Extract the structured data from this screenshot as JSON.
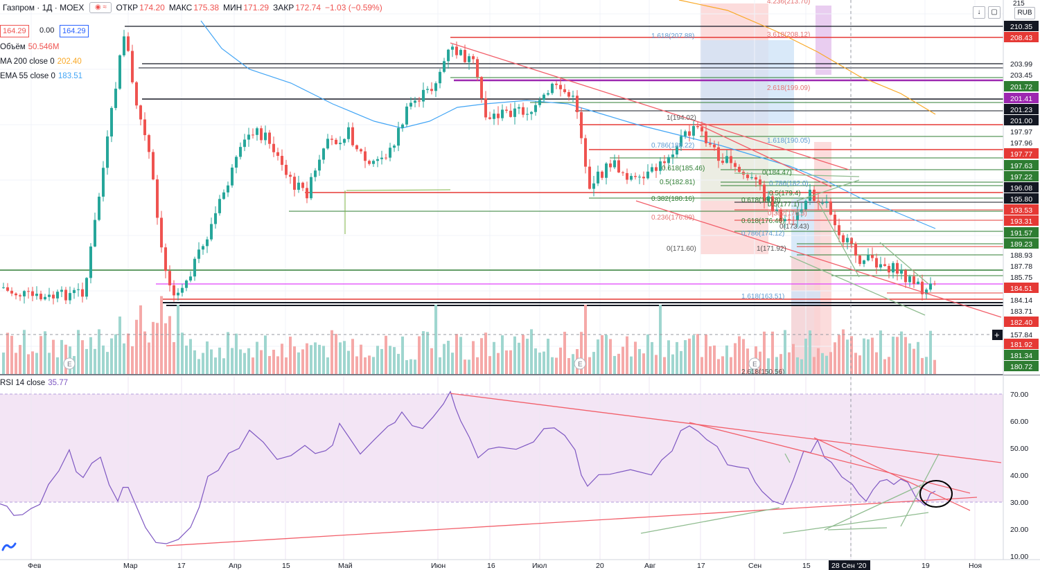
{
  "header": {
    "symbol": "Газпром · 1Д · MOEX",
    "open_label": "ОТКР",
    "open": "174.20",
    "high_label": "МАКС",
    "high": "175.38",
    "low_label": "МИН",
    "low": "171.29",
    "close_label": "ЗАКР",
    "close": "172.74",
    "change": "−1.03 (−0.59%)"
  },
  "quote": {
    "bid": "164.29",
    "spread": "0.00",
    "ask": "164.29"
  },
  "indicators": {
    "volume_label": "Объём",
    "volume_value": "50.546M",
    "ma_label": "MA 200 close 0",
    "ma_value": "202.40",
    "ema_label": "EMA 55 close 0",
    "ema_value": "183.51"
  },
  "toolbar": {
    "currency": "RUB",
    "down_icon": "↓",
    "restore_icon": "▢"
  },
  "rsi": {
    "label": "RSI 14 close",
    "value": "35.77"
  },
  "colors": {
    "up": "#26a69a",
    "down": "#ef5350",
    "ma200": "#f9a825",
    "ema55": "#42a5f5",
    "rsi_line": "#7e57c2",
    "rsi_band": "#f3e5f5",
    "trend": "#f25f6a",
    "green_level": "#388e3c",
    "fib_blue": "#5e9cd3",
    "vol_up": "#9fd6cf",
    "vol_down": "#f5a9a8"
  },
  "price_axis": {
    "labels": [
      {
        "t": "210.35",
        "bg": "#131722",
        "fg": "#ffffff"
      },
      {
        "t": "208.43",
        "bg": "#e53935",
        "fg": "#ffffff"
      },
      {
        "t": "203.99",
        "bg": "#ffffff",
        "fg": "#131722"
      },
      {
        "t": "203.45",
        "bg": "#ffffff",
        "fg": "#131722"
      },
      {
        "t": "201.72",
        "bg": "#2e7d32",
        "fg": "#ffffff"
      },
      {
        "t": "201.41",
        "bg": "#9c27b0",
        "fg": "#ffffff"
      },
      {
        "t": "201.23",
        "bg": "#131722",
        "fg": "#ffffff"
      },
      {
        "t": "201.00",
        "bg": "#131722",
        "fg": "#ffffff"
      },
      {
        "t": "197.97",
        "bg": "#ffffff",
        "fg": "#131722"
      },
      {
        "t": "197.96",
        "bg": "#ffffff",
        "fg": "#131722"
      },
      {
        "t": "197.77",
        "bg": "#e53935",
        "fg": "#ffffff"
      },
      {
        "t": "197.63",
        "bg": "#2e7d32",
        "fg": "#ffffff"
      },
      {
        "t": "197.22",
        "bg": "#2e7d32",
        "fg": "#ffffff"
      },
      {
        "t": "196.08",
        "bg": "#131722",
        "fg": "#ffffff"
      },
      {
        "t": "195.80",
        "bg": "#131722",
        "fg": "#ffffff"
      },
      {
        "t": "193.53",
        "bg": "#e53935",
        "fg": "#ffffff"
      },
      {
        "t": "193.31",
        "bg": "#e53935",
        "fg": "#ffffff"
      },
      {
        "t": "191.57",
        "bg": "#2e7d32",
        "fg": "#ffffff"
      },
      {
        "t": "189.23",
        "bg": "#2e7d32",
        "fg": "#ffffff"
      },
      {
        "t": "188.93",
        "bg": "#ffffff",
        "fg": "#131722"
      },
      {
        "t": "187.78",
        "bg": "#ffffff",
        "fg": "#131722"
      },
      {
        "t": "185.75",
        "bg": "#ffffff",
        "fg": "#131722"
      },
      {
        "t": "184.51",
        "bg": "#e53935",
        "fg": "#ffffff"
      },
      {
        "t": "184.14",
        "bg": "#ffffff",
        "fg": "#131722"
      },
      {
        "t": "183.71",
        "bg": "#ffffff",
        "fg": "#131722"
      },
      {
        "t": "182.40",
        "bg": "#e53935",
        "fg": "#ffffff"
      },
      {
        "t": "157.84",
        "bg": "#ffffff",
        "fg": "#131722"
      },
      {
        "t": "181.92",
        "bg": "#e53935",
        "fg": "#ffffff"
      },
      {
        "t": "181.34",
        "bg": "#2e7d32",
        "fg": "#ffffff"
      },
      {
        "t": "180.72",
        "bg": "#2e7d32",
        "fg": "#ffffff"
      }
    ],
    "top_partial": "215"
  },
  "rsi_axis": [
    "70.00",
    "60.00",
    "50.00",
    "40.00",
    "30.00",
    "20.00",
    "10.00"
  ],
  "time_axis": [
    {
      "t": "Фев"
    },
    {
      "t": "Мар"
    },
    {
      "t": "17"
    },
    {
      "t": "Апр"
    },
    {
      "t": "15"
    },
    {
      "t": "Май"
    },
    {
      "t": "Июн"
    },
    {
      "t": "16"
    },
    {
      "t": "Июл"
    },
    {
      "t": "20"
    },
    {
      "t": "Авг"
    },
    {
      "t": "17"
    },
    {
      "t": "Сен"
    },
    {
      "t": "15"
    },
    {
      "t": "28 Сен '20"
    },
    {
      "t": "19"
    },
    {
      "t": "Ноя"
    }
  ],
  "fib_labels": [
    "1.618(207.88)",
    "3.618(208.12)",
    "4.236(213.70)",
    "2.618(199.09)",
    "1(194.02)",
    "0.786(188.22)",
    "1.618(190.05)",
    "0.618(185.46)",
    "0.5(182.81)",
    "0.382(180.16)",
    "0.236(176.89)",
    "0.618(176.46)",
    "0.786(174.12)",
    "0(171.60)",
    "1(171.92)",
    "1.618(163.51)",
    "0(184.47)",
    "0.786(182.0)",
    "0.5(179.4)",
    "0.618(180.8)",
    "0.5(177.1)",
    "0.382(176.3)",
    "0(173.43)",
    "2.618(150.56)"
  ],
  "event_markers": [
    "E",
    "E",
    "E"
  ],
  "chart_data": {
    "type": "candlestick",
    "title": "Газпром · 1Д · MOEX",
    "y_price_range": [
      157.84,
      215
    ],
    "rsi_range": [
      10,
      70
    ],
    "series": [
      {
        "name": "MA 200 close 0",
        "last": 202.4
      },
      {
        "name": "EMA 55 close 0",
        "last": 183.51
      },
      {
        "name": "RSI 14 close",
        "last": 35.77
      },
      {
        "name": "Объём",
        "last": "50.546M"
      }
    ],
    "last_candle": {
      "open": 174.2,
      "high": 175.38,
      "low": 171.29,
      "close": 172.74
    }
  }
}
